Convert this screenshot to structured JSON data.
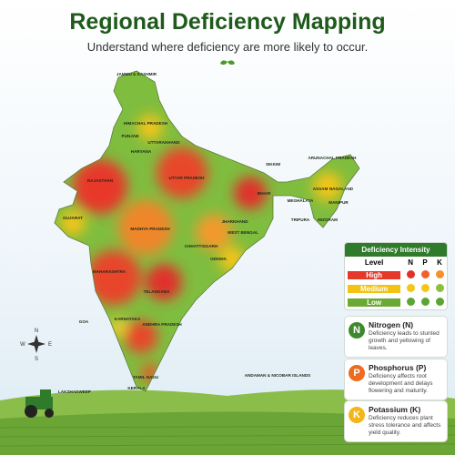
{
  "header": {
    "title": "Regional Deficiency Mapping",
    "subtitle": "Understand where deficiency are more likely to occur."
  },
  "map": {
    "labels": [
      "JAMMU & KASHMIR",
      "HIMACHAL PRADESH",
      "PUNJAB",
      "UTTARAKHAND",
      "HARYANA",
      "RAJASTHAN",
      "UTTAR PRADESH",
      "SIKKIM",
      "ARUNACHAL PRADESH",
      "BIHAR",
      "ASSAM",
      "NAGALAND",
      "MEGHALAYA",
      "MANIPUR",
      "TRIPURA",
      "MIZORAM",
      "GUJARAT",
      "MADHYA PRADESH",
      "JHARKHAND",
      "WEST BENGAL",
      "CHHATTISGARH",
      "ODISHA",
      "MAHARASHTRA",
      "TELANGANA",
      "GOA",
      "KARNATAKA",
      "ANDHRA PRADESH",
      "TAMIL NADU",
      "KERALA",
      "LAKSHADWEEP",
      "ANDAMAN & NICOBAR ISLANDS"
    ],
    "compass": [
      "N",
      "S",
      "E",
      "W"
    ]
  },
  "legend": {
    "title": "Deficiency Intensity",
    "columns": [
      "Level",
      "N",
      "P",
      "K"
    ],
    "rows": [
      {
        "level": "High",
        "color": "#e3382a",
        "dots": [
          "#e0312a",
          "#f0612a",
          "#f3922b"
        ]
      },
      {
        "level": "Medium",
        "color": "#f2c315",
        "dots": [
          "#f5c518",
          "#f5c518",
          "#8cbf3a"
        ]
      },
      {
        "level": "Low",
        "color": "#6aaa34",
        "dots": [
          "#5aa533",
          "#5aa533",
          "#5aa533"
        ]
      }
    ]
  },
  "cards": [
    {
      "letter": "N",
      "name": "Nitrogen (N)",
      "text": "Deficiency leads to stunted growth and yellowing of leaves.",
      "color": "#3d8a2e"
    },
    {
      "letter": "P",
      "name": "Phosphorus (P)",
      "text": "Deficiency affects root development and delays flowering and maturity.",
      "color": "#ee6b1f"
    },
    {
      "letter": "K",
      "name": "Potassium (K)",
      "text": "Deficiency reduces plant stress tolerance and affects yield quality.",
      "color": "#f2b51a"
    }
  ]
}
